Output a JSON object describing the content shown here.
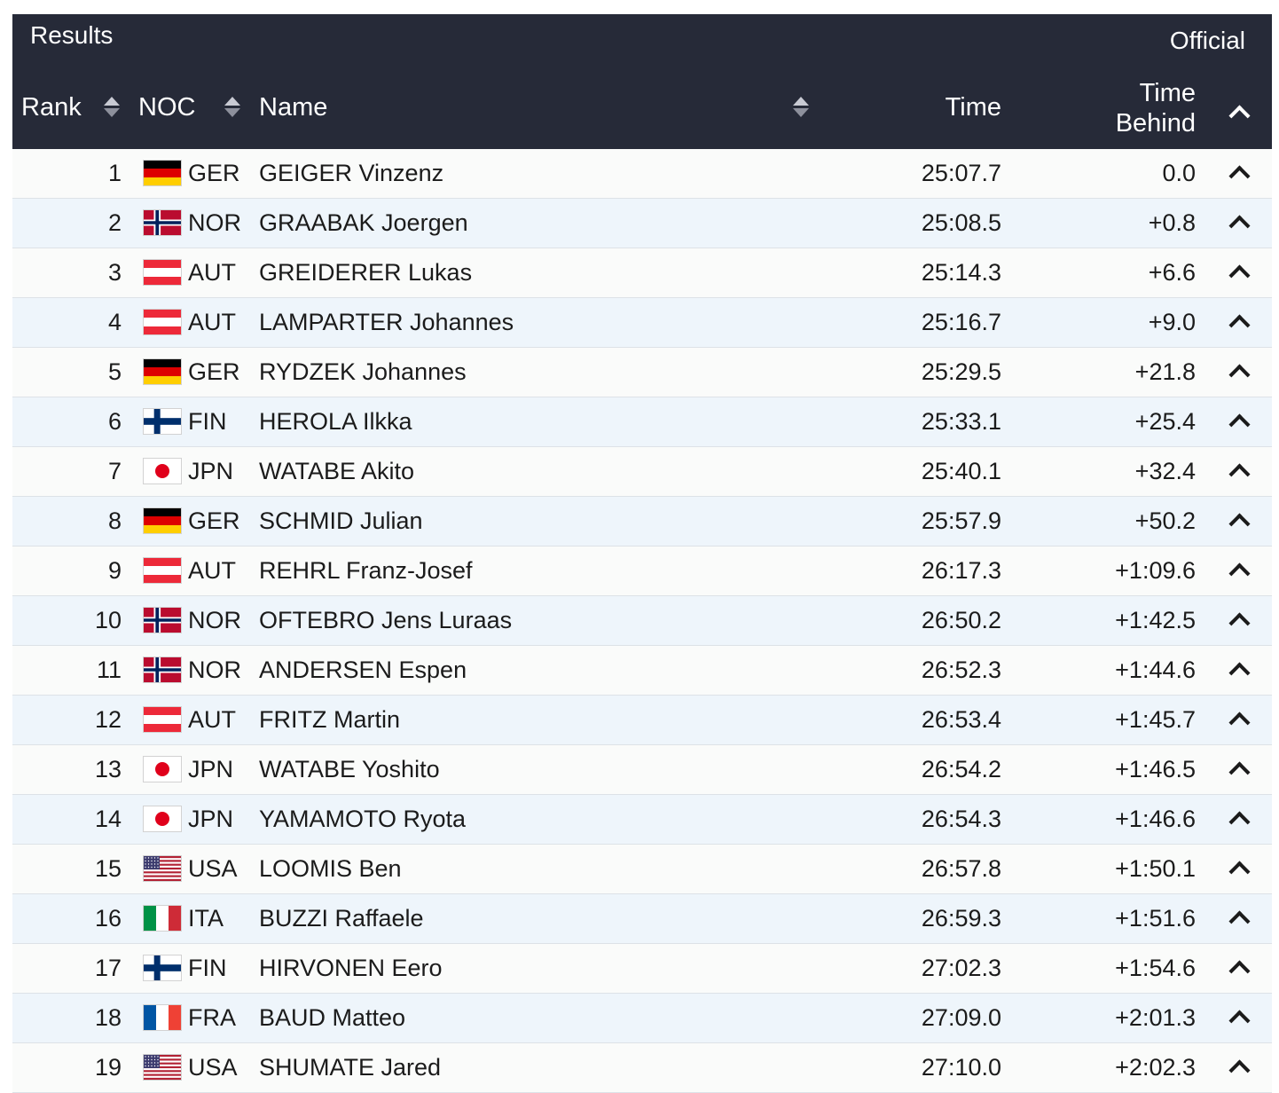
{
  "header": {
    "title": "Results",
    "status": "Official",
    "columns": {
      "rank": "Rank",
      "noc": "NOC",
      "name": "Name",
      "time": "Time",
      "time_behind_line1": "Time",
      "time_behind_line2": "Behind"
    }
  },
  "icons": {
    "sort": "sort-icon",
    "expand": "chevron-up-icon"
  },
  "colors": {
    "header_bg": "#262a38",
    "row_alt_bg": "#eef5fb",
    "row_bg": "#fafbfa"
  },
  "results": [
    {
      "rank": "1",
      "noc": "GER",
      "name": "GEIGER Vinzenz",
      "time": "25:07.7",
      "behind": "0.0"
    },
    {
      "rank": "2",
      "noc": "NOR",
      "name": "GRAABAK Joergen",
      "time": "25:08.5",
      "behind": "+0.8"
    },
    {
      "rank": "3",
      "noc": "AUT",
      "name": "GREIDERER Lukas",
      "time": "25:14.3",
      "behind": "+6.6"
    },
    {
      "rank": "4",
      "noc": "AUT",
      "name": "LAMPARTER Johannes",
      "time": "25:16.7",
      "behind": "+9.0"
    },
    {
      "rank": "5",
      "noc": "GER",
      "name": "RYDZEK Johannes",
      "time": "25:29.5",
      "behind": "+21.8"
    },
    {
      "rank": "6",
      "noc": "FIN",
      "name": "HEROLA Ilkka",
      "time": "25:33.1",
      "behind": "+25.4"
    },
    {
      "rank": "7",
      "noc": "JPN",
      "name": "WATABE Akito",
      "time": "25:40.1",
      "behind": "+32.4"
    },
    {
      "rank": "8",
      "noc": "GER",
      "name": "SCHMID Julian",
      "time": "25:57.9",
      "behind": "+50.2"
    },
    {
      "rank": "9",
      "noc": "AUT",
      "name": "REHRL Franz-Josef",
      "time": "26:17.3",
      "behind": "+1:09.6"
    },
    {
      "rank": "10",
      "noc": "NOR",
      "name": "OFTEBRO Jens Luraas",
      "time": "26:50.2",
      "behind": "+1:42.5"
    },
    {
      "rank": "11",
      "noc": "NOR",
      "name": "ANDERSEN Espen",
      "time": "26:52.3",
      "behind": "+1:44.6"
    },
    {
      "rank": "12",
      "noc": "AUT",
      "name": "FRITZ Martin",
      "time": "26:53.4",
      "behind": "+1:45.7"
    },
    {
      "rank": "13",
      "noc": "JPN",
      "name": "WATABE Yoshito",
      "time": "26:54.2",
      "behind": "+1:46.5"
    },
    {
      "rank": "14",
      "noc": "JPN",
      "name": "YAMAMOTO Ryota",
      "time": "26:54.3",
      "behind": "+1:46.6"
    },
    {
      "rank": "15",
      "noc": "USA",
      "name": "LOOMIS Ben",
      "time": "26:57.8",
      "behind": "+1:50.1"
    },
    {
      "rank": "16",
      "noc": "ITA",
      "name": "BUZZI Raffaele",
      "time": "26:59.3",
      "behind": "+1:51.6"
    },
    {
      "rank": "17",
      "noc": "FIN",
      "name": "HIRVONEN Eero",
      "time": "27:02.3",
      "behind": "+1:54.6"
    },
    {
      "rank": "18",
      "noc": "FRA",
      "name": "BAUD Matteo",
      "time": "27:09.0",
      "behind": "+2:01.3"
    },
    {
      "rank": "19",
      "noc": "USA",
      "name": "SHUMATE Jared",
      "time": "27:10.0",
      "behind": "+2:02.3"
    }
  ]
}
